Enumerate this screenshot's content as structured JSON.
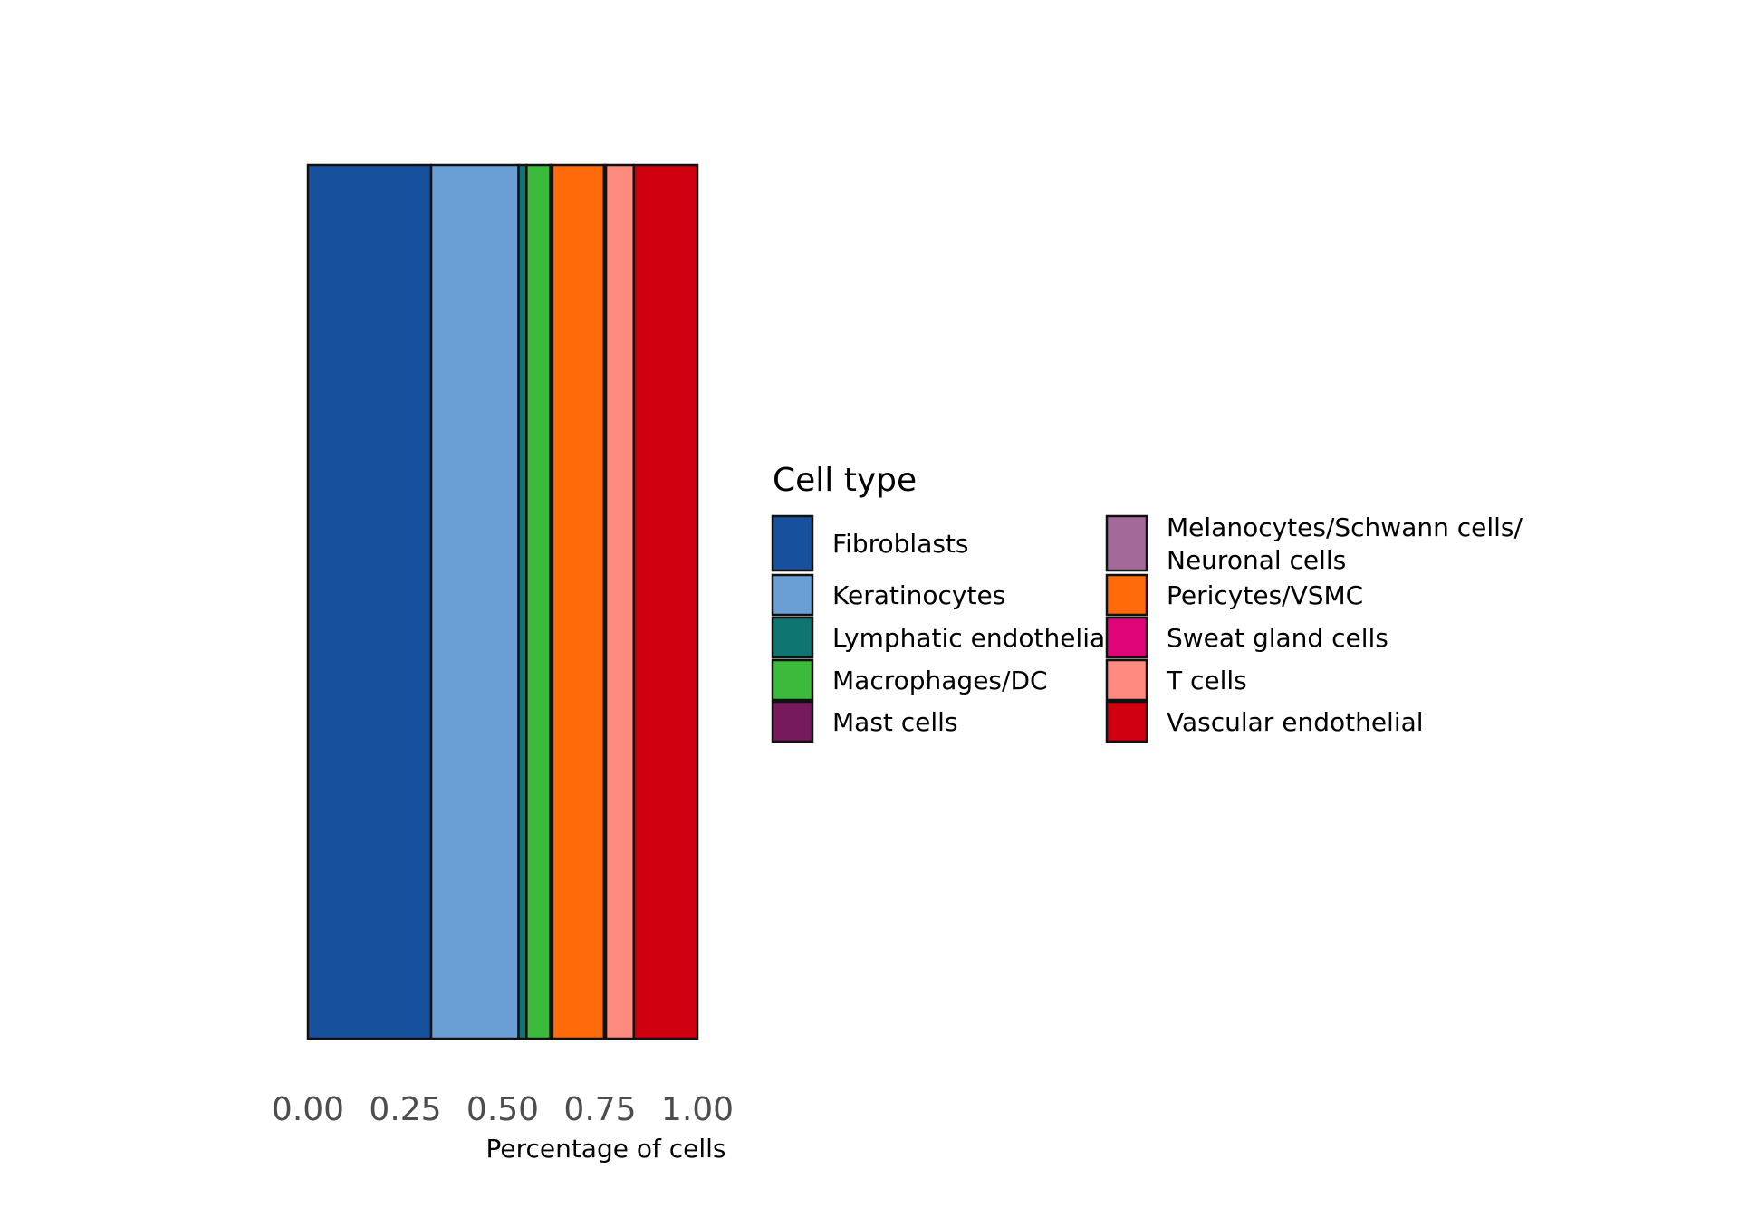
{
  "chart_data": {
    "type": "bar",
    "orientation": "horizontal",
    "stacked": "fill",
    "xlabel": "Percentage of cells",
    "ylabel": "",
    "xlim": [
      0,
      1
    ],
    "x_ticks": [
      "0.00",
      "0.25",
      "0.50",
      "0.75",
      "1.00"
    ],
    "x_tick_values": [
      0,
      0.25,
      0.5,
      0.75,
      1.0
    ],
    "grid": false,
    "legend": {
      "title": "Cell type",
      "placement": "right",
      "columns": 2
    },
    "series": [
      {
        "name": "Fibroblasts",
        "value": 0.31,
        "color": "#17519E"
      },
      {
        "name": "Keratinocytes",
        "value": 0.22,
        "color": "#6A9FD6"
      },
      {
        "name": "Lymphatic endothelial",
        "value": 0.02,
        "color": "#0F7571"
      },
      {
        "name": "Macrophages/DC",
        "value": 0.06,
        "color": "#3BBA3B"
      },
      {
        "name": "Mast cells",
        "value": 0.005,
        "color": "#761A5C"
      },
      {
        "name": "Melanocytes/Schwann cells/\nNeuronal cells",
        "value": 0.0,
        "color": "#A36A99"
      },
      {
        "name": "Pericytes/VSMC",
        "value": 0.13,
        "color": "#FF6A0A"
      },
      {
        "name": "Sweat gland cells",
        "value": 0.005,
        "color": "#E0067A"
      },
      {
        "name": "T cells",
        "value": 0.07,
        "color": "#FF8B80"
      },
      {
        "name": "Vascular endothelial",
        "value": 0.16,
        "color": "#D10011"
      }
    ]
  }
}
